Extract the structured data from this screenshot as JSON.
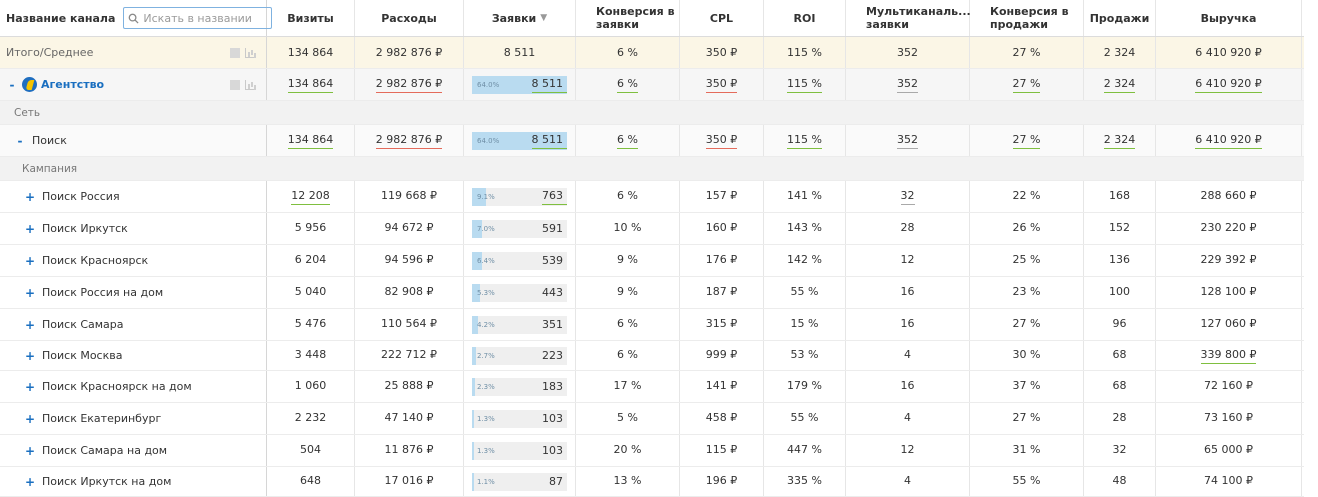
{
  "columns": {
    "name": "Название канала",
    "visits": "Визиты",
    "expenses": "Расходы",
    "requests": "Заявки",
    "conv_req": "Конверсия в заявки",
    "cpl": "CPL",
    "roi": "ROI",
    "multi": "Мультиканаль... заявки",
    "conv_sales": "Конверсия в продажи",
    "sales": "Продажи",
    "revenue": "Выручка"
  },
  "search": {
    "placeholder": "Искать в названии",
    "value": ""
  },
  "total": {
    "label": "Итого/Среднее",
    "visits": "134 864",
    "expenses": "2 982 876 ₽",
    "requests": "8 511",
    "conv_req": "6 %",
    "cpl": "350 ₽",
    "roi": "115 %",
    "multi": "352",
    "conv_sales": "27 %",
    "sales": "2 324",
    "revenue": "6 410 920 ₽"
  },
  "agency": {
    "label": "Агентство",
    "toggle": "-",
    "visits": "134 864",
    "expenses": "2 982 876 ₽",
    "req_pct": "64.0%",
    "req_fill": 0.64,
    "requests": "8 511",
    "conv_req": "6 %",
    "cpl": "350 ₽",
    "roi": "115 %",
    "multi": "352",
    "conv_sales": "27 %",
    "sales": "2 324",
    "revenue": "6 410 920 ₽"
  },
  "group_network": "Сеть",
  "search_row": {
    "label": "Поиск",
    "toggle": "-",
    "visits": "134 864",
    "expenses": "2 982 876 ₽",
    "req_pct": "64.0%",
    "req_fill": 0.64,
    "requests": "8 511",
    "conv_req": "6 %",
    "cpl": "350 ₽",
    "roi": "115 %",
    "multi": "352",
    "conv_sales": "27 %",
    "sales": "2 324",
    "revenue": "6 410 920 ₽"
  },
  "group_campaign": "Кампания",
  "campaigns": [
    {
      "toggle": "+",
      "label": "Поиск Россия",
      "visits": "12 208",
      "expenses": "119 668 ₽",
      "req_pct": "9.1%",
      "req_fill": 0.091,
      "requests": "763",
      "conv_req": "6 %",
      "cpl": "157 ₽",
      "roi": "141 %",
      "multi": "32",
      "conv_sales": "22 %",
      "sales": "168",
      "revenue": "288 660 ₽"
    },
    {
      "toggle": "+",
      "label": "Поиск Иркутск",
      "visits": "5 956",
      "expenses": "94 672 ₽",
      "req_pct": "7.0%",
      "req_fill": 0.07,
      "requests": "591",
      "conv_req": "10 %",
      "cpl": "160 ₽",
      "roi": "143 %",
      "multi": "28",
      "conv_sales": "26 %",
      "sales": "152",
      "revenue": "230 220 ₽"
    },
    {
      "toggle": "+",
      "label": "Поиск Красноярск",
      "visits": "6 204",
      "expenses": "94 596 ₽",
      "req_pct": "6.4%",
      "req_fill": 0.064,
      "requests": "539",
      "conv_req": "9 %",
      "cpl": "176 ₽",
      "roi": "142 %",
      "multi": "12",
      "conv_sales": "25 %",
      "sales": "136",
      "revenue": "229 392 ₽"
    },
    {
      "toggle": "+",
      "label": "Поиск Россия на дом",
      "visits": "5 040",
      "expenses": "82 908 ₽",
      "req_pct": "5.3%",
      "req_fill": 0.053,
      "requests": "443",
      "conv_req": "9 %",
      "cpl": "187 ₽",
      "roi": "55 %",
      "multi": "16",
      "conv_sales": "23 %",
      "sales": "100",
      "revenue": "128 100 ₽"
    },
    {
      "toggle": "+",
      "label": "Поиск Самара",
      "visits": "5 476",
      "expenses": "110 564 ₽",
      "req_pct": "4.2%",
      "req_fill": 0.042,
      "requests": "351",
      "conv_req": "6 %",
      "cpl": "315 ₽",
      "roi": "15 %",
      "multi": "16",
      "conv_sales": "27 %",
      "sales": "96",
      "revenue": "127 060 ₽"
    },
    {
      "toggle": "+",
      "label": "Поиск Москва",
      "visits": "3 448",
      "expenses": "222 712 ₽",
      "req_pct": "2.7%",
      "req_fill": 0.027,
      "requests": "223",
      "conv_req": "6 %",
      "cpl": "999 ₽",
      "roi": "53 %",
      "multi": "4",
      "conv_sales": "30 %",
      "sales": "68",
      "revenue": "339 800 ₽"
    },
    {
      "toggle": "+",
      "label": "Поиск Красноярск на дом",
      "visits": "1 060",
      "expenses": "25 888 ₽",
      "req_pct": "2.3%",
      "req_fill": 0.023,
      "requests": "183",
      "conv_req": "17 %",
      "cpl": "141 ₽",
      "roi": "179 %",
      "multi": "16",
      "conv_sales": "37 %",
      "sales": "68",
      "revenue": "72 160 ₽"
    },
    {
      "toggle": "+",
      "label": "Поиск Екатеринбург",
      "visits": "2 232",
      "expenses": "47 140 ₽",
      "req_pct": "1.3%",
      "req_fill": 0.013,
      "requests": "103",
      "conv_req": "5 %",
      "cpl": "458 ₽",
      "roi": "55 %",
      "multi": "4",
      "conv_sales": "27 %",
      "sales": "28",
      "revenue": "73 160 ₽"
    },
    {
      "toggle": "+",
      "label": "Поиск Самара на дом",
      "visits": "504",
      "expenses": "11 876 ₽",
      "req_pct": "1.3%",
      "req_fill": 0.013,
      "requests": "103",
      "conv_req": "20 %",
      "cpl": "115 ₽",
      "roi": "447 %",
      "multi": "12",
      "conv_sales": "31 %",
      "sales": "32",
      "revenue": "65 000 ₽"
    },
    {
      "toggle": "+",
      "label": "Поиск Иркутск на дом",
      "visits": "648",
      "expenses": "17 016 ₽",
      "req_pct": "1.1%",
      "req_fill": 0.011,
      "requests": "87",
      "conv_req": "13 %",
      "cpl": "196 ₽",
      "roi": "335 %",
      "multi": "4",
      "conv_sales": "55 %",
      "sales": "48",
      "revenue": "74 100 ₽"
    }
  ],
  "colors": {
    "accent": "#1a6fc0",
    "bar": "#b9dbf0",
    "underline_good": "#7fbf3f",
    "underline_bad": "#e46b5b",
    "total_bg": "#fbf6e6"
  },
  "icons": [
    "search-icon",
    "square-icon",
    "bar-chart-icon",
    "agency-logo-icon",
    "sort-down-icon"
  ]
}
